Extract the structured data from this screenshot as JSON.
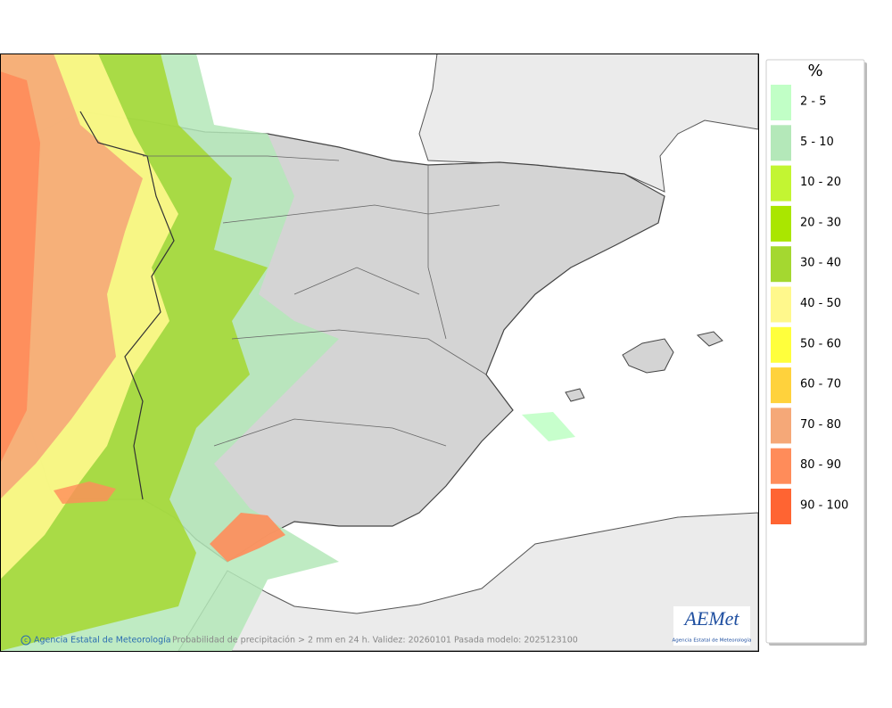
{
  "legend": {
    "title": "%",
    "items": [
      {
        "label": "2 - 5",
        "color": "#c1ffc6"
      },
      {
        "label": "5 - 10",
        "color": "#b4e8b9"
      },
      {
        "label": "10 - 20",
        "color": "#c3f532"
      },
      {
        "label": "20 - 30",
        "color": "#aae600"
      },
      {
        "label": "30 - 40",
        "color": "#a4d830"
      },
      {
        "label": "40 - 50",
        "color": "#fff88c"
      },
      {
        "label": "50 - 60",
        "color": "#ffff3c"
      },
      {
        "label": "60 - 70",
        "color": "#ffd23c"
      },
      {
        "label": "70 - 80",
        "color": "#f5a878"
      },
      {
        "label": "80 - 90",
        "color": "#ff8c5a"
      },
      {
        "label": "90 - 100",
        "color": "#ff6432"
      }
    ]
  },
  "footer": {
    "credit": "Agencia Estatal de Meteorología",
    "caption": "Probabilidad de precipitación > 2 mm en 24 h. Validez: 20260101 Pasada modelo: 2025123100"
  },
  "logo": {
    "name": "AEMet",
    "subtitle": "Agencia Estatal de Meteorología"
  }
}
